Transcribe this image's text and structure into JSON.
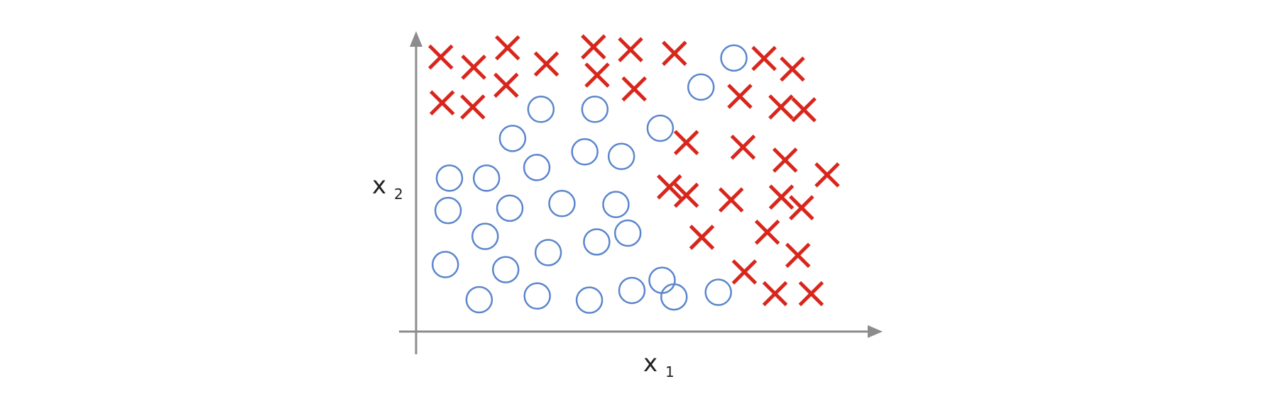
{
  "chart_data": {
    "type": "scatter",
    "title": "",
    "xlabel": {
      "base": "x",
      "sub": "1"
    },
    "ylabel": {
      "base": "x",
      "sub": "2"
    },
    "axis_ticks": false,
    "grid": false,
    "legend": "none",
    "xlim": [
      0,
      10
    ],
    "ylim": [
      0,
      6.5
    ],
    "series": [
      {
        "marker": "cross",
        "color": "#d9261c",
        "points": [
          [
            0.54,
            5.94
          ],
          [
            1.26,
            5.72
          ],
          [
            2.0,
            6.14
          ],
          [
            2.85,
            5.79
          ],
          [
            3.88,
            6.16
          ],
          [
            4.69,
            6.1
          ],
          [
            5.65,
            6.02
          ],
          [
            0.57,
            4.95
          ],
          [
            1.24,
            4.86
          ],
          [
            1.97,
            5.33
          ],
          [
            3.96,
            5.55
          ],
          [
            4.77,
            5.25
          ],
          [
            7.61,
            5.91
          ],
          [
            8.23,
            5.68
          ],
          [
            7.08,
            5.09
          ],
          [
            7.98,
            4.86
          ],
          [
            8.48,
            4.8
          ],
          [
            5.91,
            4.09
          ],
          [
            7.15,
            3.99
          ],
          [
            8.07,
            3.71
          ],
          [
            8.99,
            3.39
          ],
          [
            5.54,
            3.13
          ],
          [
            5.91,
            2.95
          ],
          [
            6.89,
            2.85
          ],
          [
            7.99,
            2.91
          ],
          [
            8.43,
            2.68
          ],
          [
            6.25,
            2.04
          ],
          [
            7.68,
            2.15
          ],
          [
            8.35,
            1.65
          ],
          [
            7.18,
            1.29
          ],
          [
            7.85,
            0.82
          ],
          [
            8.64,
            0.82
          ]
        ]
      },
      {
        "marker": "circle",
        "color": "#5b86cc",
        "points": [
          [
            6.95,
            5.92
          ],
          [
            6.23,
            5.29
          ],
          [
            2.73,
            4.81
          ],
          [
            3.91,
            4.81
          ],
          [
            5.34,
            4.4
          ],
          [
            2.11,
            4.18
          ],
          [
            3.69,
            3.89
          ],
          [
            4.49,
            3.79
          ],
          [
            2.64,
            3.55
          ],
          [
            0.73,
            3.32
          ],
          [
            1.54,
            3.32
          ],
          [
            2.05,
            2.67
          ],
          [
            3.19,
            2.77
          ],
          [
            4.37,
            2.75
          ],
          [
            0.7,
            2.62
          ],
          [
            1.51,
            2.06
          ],
          [
            4.63,
            2.13
          ],
          [
            3.95,
            1.94
          ],
          [
            2.89,
            1.71
          ],
          [
            0.64,
            1.45
          ],
          [
            1.96,
            1.34
          ],
          [
            5.38,
            1.11
          ],
          [
            1.38,
            0.69
          ],
          [
            2.65,
            0.77
          ],
          [
            3.79,
            0.68
          ],
          [
            4.72,
            0.89
          ],
          [
            5.64,
            0.75
          ],
          [
            6.61,
            0.85
          ]
        ]
      }
    ]
  }
}
